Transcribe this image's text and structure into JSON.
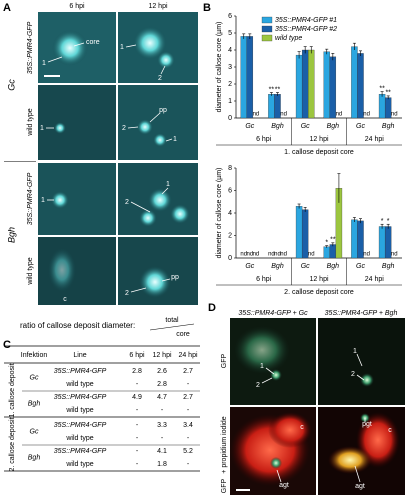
{
  "panel_labels": [
    "A",
    "B",
    "C",
    "D"
  ],
  "panel_a": {
    "columns": [
      "6 hpi",
      "12 hpi"
    ],
    "groups": [
      "Gc",
      "Bgh"
    ],
    "rows": [
      "35S::PMR4-GFP",
      "wild type",
      "35S::PMR4-GFP",
      "wild type"
    ],
    "annotations": [
      "core",
      "1",
      "1",
      "2",
      "1",
      "pp",
      "2",
      "1",
      "1",
      "1",
      "2",
      "c",
      "pp",
      "2"
    ]
  },
  "chart_data": [
    {
      "type": "bar",
      "categories": [
        "Gc",
        "Bgh",
        "Gc",
        "Bgh",
        "Gc",
        "Bgh"
      ],
      "groups": [
        "6 hpi",
        "12 hpi",
        "24 hpi"
      ],
      "y_label": "diameter of callose core (µm)",
      "subtitle": "1. callose deposit core",
      "ylim": [
        0,
        6
      ],
      "yticks": [
        0,
        1,
        2,
        3,
        4,
        5,
        6
      ],
      "grid": false,
      "legend": "top",
      "series": [
        {
          "name": "35S::PMR4-GFP #1",
          "color": "#2aa6e0",
          "values": [
            4.8,
            1.4,
            3.7,
            3.9,
            4.2,
            1.4
          ],
          "errors": [
            0.15,
            0.1,
            0.2,
            0.15,
            0.2,
            0.15
          ],
          "significance": [
            null,
            "**",
            null,
            null,
            null,
            "**"
          ]
        },
        {
          "name": "35S::PMR4-GFP #2",
          "color": "#1a5fa8",
          "values": [
            4.8,
            1.4,
            4.0,
            3.6,
            3.8,
            1.2
          ],
          "errors": [
            0.15,
            0.1,
            0.2,
            0.2,
            0.15,
            0.1
          ],
          "significance": [
            null,
            "**",
            null,
            null,
            null,
            "**"
          ]
        },
        {
          "name": "wild type",
          "color": "#9cc63f",
          "values": [
            null,
            null,
            4.0,
            null,
            null,
            null
          ],
          "errors": [
            null,
            null,
            0.2,
            null,
            null,
            null
          ],
          "value_labels": [
            "nd",
            "nd",
            null,
            "nd",
            "nd",
            "nd"
          ]
        }
      ]
    },
    {
      "type": "bar",
      "categories": [
        "Gc",
        "Bgh",
        "Gc",
        "Bgh",
        "Gc",
        "Bgh"
      ],
      "groups": [
        "6 hpi",
        "12 hpi",
        "24 hpi"
      ],
      "y_label": "diameter of callose core (µm)",
      "subtitle": "2. callose deposit core",
      "ylim": [
        0,
        8
      ],
      "yticks": [
        0,
        2,
        4,
        6,
        8
      ],
      "grid": false,
      "series": [
        {
          "color": "#2aa6e0",
          "values": [
            null,
            null,
            4.6,
            1.0,
            3.4,
            2.8
          ],
          "errors": [
            null,
            null,
            0.2,
            0.1,
            0.2,
            0.2
          ],
          "value_labels": [
            "nd",
            "nd",
            null,
            null,
            null,
            null
          ],
          "significance": [
            null,
            null,
            null,
            "*",
            null,
            "*"
          ]
        },
        {
          "color": "#1a5fa8",
          "values": [
            null,
            null,
            4.3,
            1.2,
            3.3,
            2.8
          ],
          "errors": [
            null,
            null,
            0.2,
            0.15,
            0.2,
            0.2
          ],
          "value_labels": [
            "nd",
            "nd",
            null,
            null,
            null,
            null
          ],
          "significance": [
            null,
            null,
            null,
            "**",
            null,
            "*"
          ]
        },
        {
          "color": "#9cc63f",
          "values": [
            null,
            null,
            null,
            6.2,
            null,
            null
          ],
          "errors": [
            null,
            null,
            null,
            1.3,
            null,
            null
          ],
          "value_labels": [
            "nd",
            "nd",
            "nd",
            null,
            "nd",
            "nd"
          ]
        }
      ]
    }
  ],
  "panel_c": {
    "title": "ratio of callose deposit diameter:",
    "fraction": [
      "total",
      "core"
    ],
    "header": [
      "Infektion",
      "Line",
      "6 hpi",
      "12 hpi",
      "24 hpi"
    ],
    "sections": [
      {
        "label": "1. callose deposit",
        "groups": [
          {
            "infection": "Gc",
            "rows": [
              [
                "35S::PMR4-GFP",
                "2.8",
                "2.6",
                "2.7"
              ],
              [
                "wild type",
                "-",
                "2.8",
                "-"
              ]
            ]
          },
          {
            "infection": "Bgh",
            "rows": [
              [
                "35S::PMR4-GFP",
                "4.9",
                "4.7",
                "2.7"
              ],
              [
                "wild type",
                "-",
                "-",
                "-"
              ]
            ]
          }
        ]
      },
      {
        "label": "2. callose deposit",
        "groups": [
          {
            "infection": "Gc",
            "rows": [
              [
                "35S::PMR4-GFP",
                "-",
                "3.3",
                "3.4"
              ],
              [
                "wild type",
                "-",
                "-",
                "-"
              ]
            ]
          },
          {
            "infection": "Bgh",
            "rows": [
              [
                "35S::PMR4-GFP",
                "-",
                "4.1",
                "5.2"
              ],
              [
                "wild type",
                "-",
                "1.8",
                "-"
              ]
            ]
          }
        ]
      }
    ]
  },
  "panel_d": {
    "columns": [
      "35S::PMR4-GFP + Gc",
      "35S::PMR4-GFP + Bgh"
    ],
    "row_labels": [
      "GFP",
      "GFP",
      "+ propidium iodide"
    ],
    "annotations": [
      "1",
      "2",
      "1",
      "2",
      "c",
      "agt",
      "pgt",
      "c",
      "agt"
    ]
  }
}
